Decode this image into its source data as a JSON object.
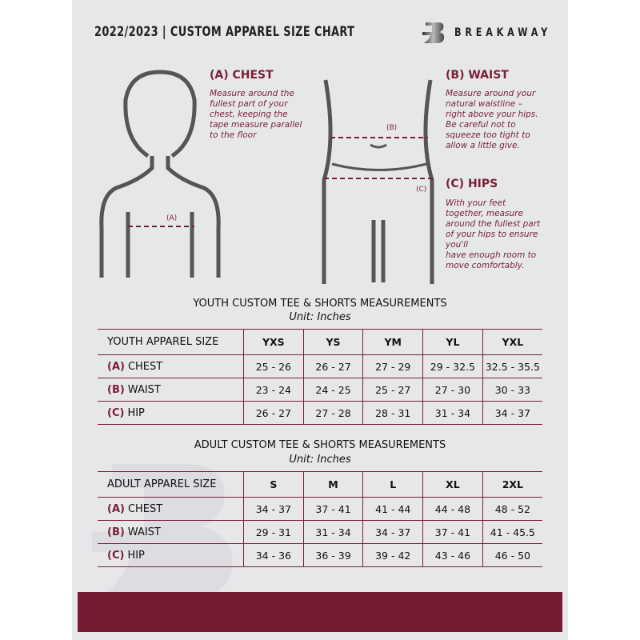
{
  "header": {
    "title": "2022/2023  |  CUSTOM APPAREL SIZE CHART",
    "brand": "BREAKAWAY",
    "logo_letter": "B"
  },
  "colors": {
    "accent": "#7a1f35",
    "background": "#e6e7e9",
    "footer": "#721b31"
  },
  "measures": {
    "chest": {
      "heading": "(A) CHEST",
      "text": [
        "Measure around the",
        "fullest part of your",
        "chest, keeping the",
        "tape measure parallel",
        "to the floor"
      ],
      "marker": "(A)"
    },
    "waist": {
      "heading": "(B) WAIST",
      "text": [
        "Measure around your",
        "natural waistline –",
        "right above your hips.",
        "Be careful not to",
        "squeeze too tight to",
        "allow a little give."
      ],
      "marker": "(B)"
    },
    "hips": {
      "heading": "(C) HIPS",
      "text": [
        "With your feet",
        "together, measure",
        "around the fullest part",
        "of your hips to ensure",
        "you'll",
        "have enough room to",
        "move comfortably."
      ],
      "marker": "(C)"
    }
  },
  "youth": {
    "title": "YOUTH CUSTOM TEE & SHORTS MEASUREMENTS",
    "unit": "Unit: Inches",
    "header": [
      "YOUTH APPAREL SIZE",
      "YXS",
      "YS",
      "YM",
      "YL",
      "YXL"
    ],
    "rows": [
      {
        "letter": "(A)",
        "label": "CHEST",
        "values": [
          "25 - 26",
          "26 - 27",
          "27 - 29",
          "29 - 32.5",
          "32.5 - 35.5"
        ]
      },
      {
        "letter": "(B)",
        "label": "WAIST",
        "values": [
          "23 - 24",
          "24 - 25",
          "25 - 27",
          "27 - 30",
          "30 - 33"
        ]
      },
      {
        "letter": "(C)",
        "label": "HIP",
        "values": [
          "26 - 27",
          "27 - 28",
          "28 - 31",
          "31 - 34",
          "34 - 37"
        ]
      }
    ]
  },
  "adult": {
    "title": "ADULT CUSTOM TEE & SHORTS MEASUREMENTS",
    "unit": "Unit: Inches",
    "header": [
      "ADULT APPAREL SIZE",
      "S",
      "M",
      "L",
      "XL",
      "2XL"
    ],
    "rows": [
      {
        "letter": "(A)",
        "label": "CHEST",
        "values": [
          "34 - 37",
          "37 - 41",
          "41 - 44",
          "44 - 48",
          "48 - 52"
        ]
      },
      {
        "letter": "(B)",
        "label": "WAIST",
        "values": [
          "29 - 31",
          "31 - 34",
          "34 - 37",
          "37 - 41",
          "41 - 45.5"
        ]
      },
      {
        "letter": "(C)",
        "label": "HIP",
        "values": [
          "34 - 36",
          "36 - 39",
          "39 - 42",
          "43 - 46",
          "46 - 50"
        ]
      }
    ]
  }
}
